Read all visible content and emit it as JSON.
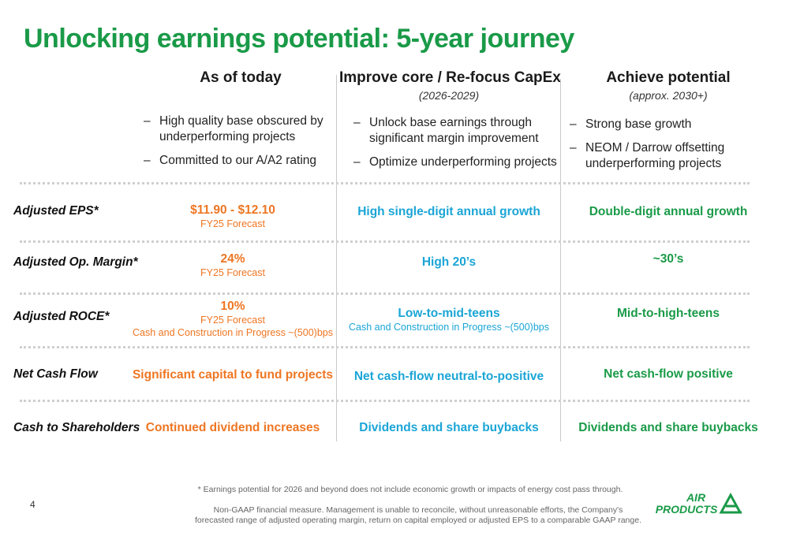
{
  "title": "Unlocking earnings potential: 5-year journey",
  "columns": [
    {
      "heading": "As of today",
      "subheading": "",
      "bullets": [
        "High quality base obscured by underperforming projects",
        "Committed to our A/A2 rating"
      ]
    },
    {
      "heading": "Improve core / Re-focus CapEx",
      "subheading": "(2026-2029)",
      "bullets": [
        "Unlock base earnings through significant margin improvement",
        "Optimize underperforming projects"
      ]
    },
    {
      "heading": "Achieve potential",
      "subheading": "(approx. 2030+)",
      "bullets": [
        "Strong base growth",
        "NEOM / Darrow offsetting underperforming projects"
      ]
    }
  ],
  "rows": [
    {
      "label": "Adjusted EPS*",
      "today": {
        "main": "$11.90 - $12.10",
        "sub1": "FY25 Forecast",
        "sub2": ""
      },
      "improve": {
        "main": "High single-digit annual growth",
        "sub": ""
      },
      "achieve": {
        "main": "Double-digit annual growth"
      }
    },
    {
      "label": "Adjusted Op. Margin*",
      "today": {
        "main": "24%",
        "sub1": "FY25 Forecast",
        "sub2": ""
      },
      "improve": {
        "main": "High 20’s",
        "sub": ""
      },
      "achieve": {
        "main": "~30’s"
      }
    },
    {
      "label": "Adjusted ROCE*",
      "today": {
        "main": "10%",
        "sub1": "FY25 Forecast",
        "sub2": "Cash and Construction in Progress ~(500)bps"
      },
      "improve": {
        "main": "Low-to-mid-teens",
        "sub": "Cash and Construction in Progress ~(500)bps"
      },
      "achieve": {
        "main": "Mid-to-high-teens"
      }
    },
    {
      "label": "Net Cash Flow",
      "today": {
        "main": "Significant capital to fund projects",
        "sub1": "",
        "sub2": ""
      },
      "improve": {
        "main": "Net cash-flow neutral-to-positive",
        "sub": ""
      },
      "achieve": {
        "main": "Net cash-flow positive"
      }
    },
    {
      "label": "Cash to Shareholders",
      "today": {
        "main": "Continued dividend increases",
        "sub1": "",
        "sub2": ""
      },
      "improve": {
        "main": "Dividends and share buybacks",
        "sub": ""
      },
      "achieve": {
        "main": "Dividends and share buybacks"
      }
    }
  ],
  "footnote": "* Earnings potential for 2026 and beyond does not include economic growth or impacts of energy cost pass through.",
  "disclaimer": "Non-GAAP financial measure. Management is unable to reconcile, without unreasonable efforts, the Company's forecasted range of adjusted operating margin, return on capital employed or adjusted EPS to a comparable GAAP range.",
  "page_number": "4",
  "logo": {
    "line1": "AIR",
    "line2": "PRODUCTS"
  },
  "colors": {
    "green": "#1a9a48",
    "orange": "#ee7623",
    "blue": "#1aa5d6"
  }
}
